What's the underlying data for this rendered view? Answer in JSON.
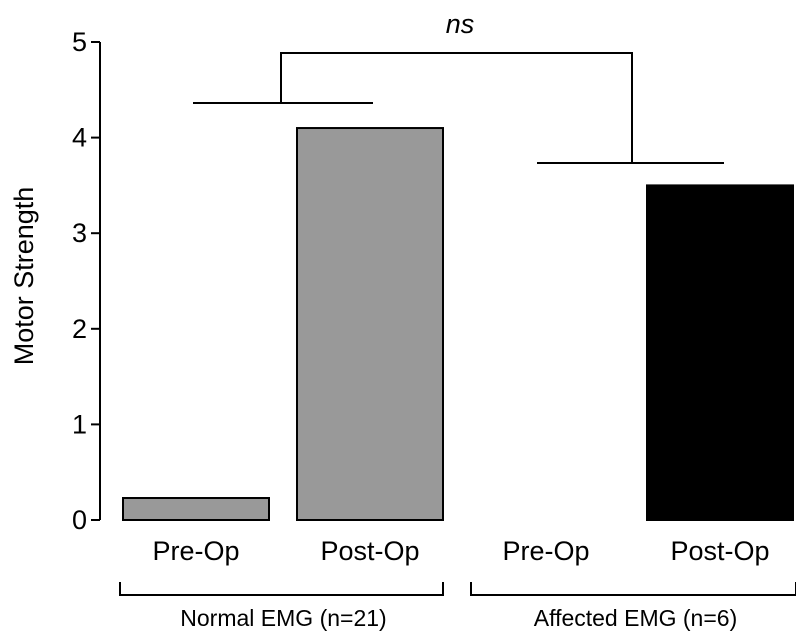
{
  "chart_data": {
    "type": "bar",
    "title": "",
    "xlabel": "",
    "ylabel": "Motor Strength",
    "ylim": [
      0,
      5
    ],
    "yticks": [
      0,
      1,
      2,
      3,
      4,
      5
    ],
    "grid": false,
    "legend": "none",
    "categories": [
      "Pre-Op",
      "Post-Op",
      "Pre-Op",
      "Post-Op"
    ],
    "values": [
      0.23,
      4.1,
      0.0,
      3.5
    ],
    "bar_colors": [
      "#999999",
      "#999999",
      "#ffffff",
      "#000000"
    ],
    "groups": [
      {
        "label": "Normal EMG (n=21)",
        "categories": [
          0,
          1
        ]
      },
      {
        "label": "Affected EMG (n=6)",
        "categories": [
          2,
          3
        ]
      }
    ],
    "annotations": [
      {
        "text": "ns",
        "style": "italic"
      }
    ]
  }
}
